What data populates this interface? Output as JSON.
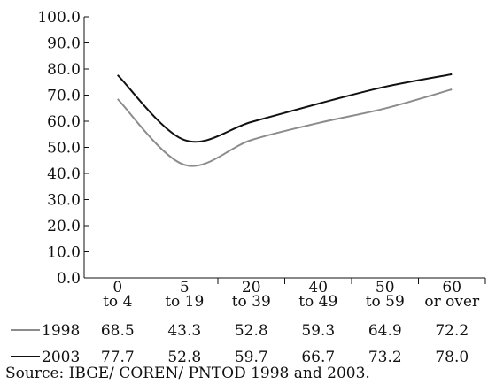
{
  "chart_data": {
    "type": "line",
    "categories": [
      [
        "0",
        "to 4"
      ],
      [
        "5",
        "to 19"
      ],
      [
        "20",
        "to 39"
      ],
      [
        "40",
        "to 49"
      ],
      [
        "50",
        "to 59"
      ],
      [
        "60",
        "or over"
      ]
    ],
    "yticks": [
      "100.0",
      "90.0",
      "80.0",
      "70.0",
      "60.0",
      "50.0",
      "40.0",
      "30.0",
      "20.0",
      "10.0",
      "0.0"
    ],
    "ylim": [
      0,
      100
    ],
    "series": [
      {
        "name": "1998",
        "values": [
          68.5,
          43.3,
          52.8,
          59.3,
          64.9,
          72.2
        ],
        "value_labels": [
          "68.5",
          "43.3",
          "52.8",
          "59.3",
          "64.9",
          "72.2"
        ],
        "color": "#8c8c8c"
      },
      {
        "name": "2003",
        "values": [
          77.7,
          52.8,
          59.7,
          66.7,
          73.2,
          78.0
        ],
        "value_labels": [
          "77.7",
          "52.8",
          "59.7",
          "66.7",
          "73.2",
          "78.0"
        ],
        "color": "#111111"
      }
    ],
    "legend_placement": "table-below"
  },
  "source": "Source: IBGE/ COREN/ PNTOD 1998 and 2003."
}
